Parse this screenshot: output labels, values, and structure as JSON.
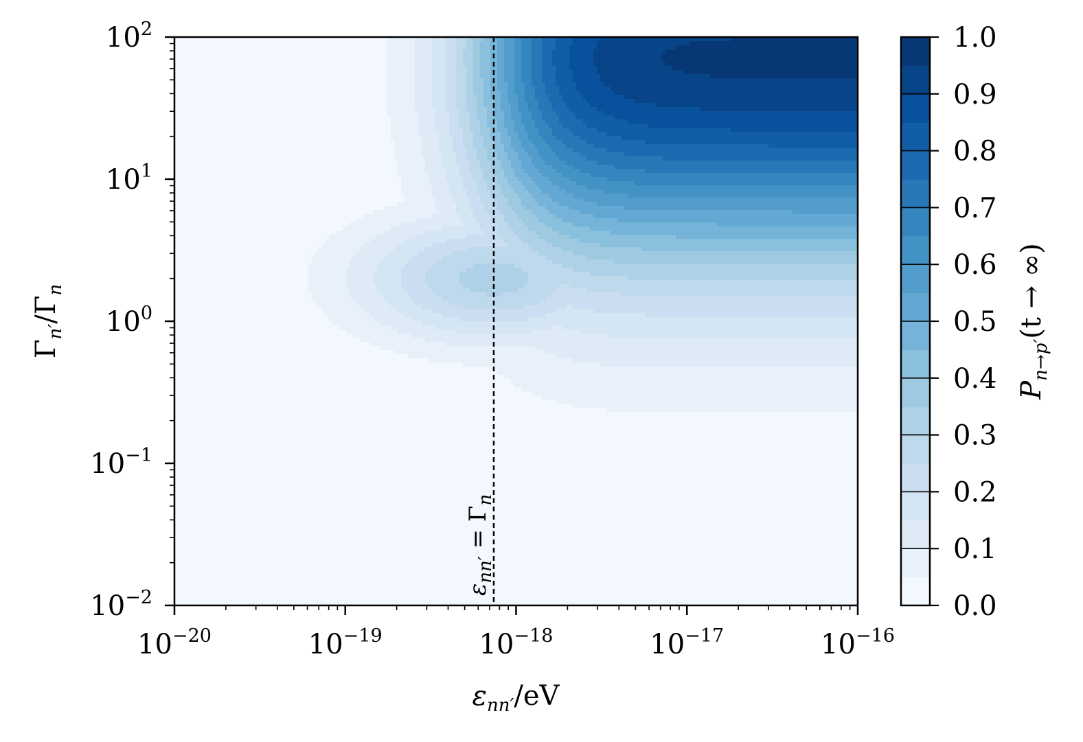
{
  "chart_data": {
    "type": "heatmap",
    "plot": "filled-contour",
    "x_scale": "log",
    "y_scale": "log",
    "xlim": [
      1e-20,
      1e-16
    ],
    "ylim": [
      0.01,
      100
    ],
    "x_ticks": [
      {
        "base": "10",
        "exp": "−20"
      },
      {
        "base": "10",
        "exp": "−19"
      },
      {
        "base": "10",
        "exp": "−18"
      },
      {
        "base": "10",
        "exp": "−17"
      },
      {
        "base": "10",
        "exp": "−16"
      }
    ],
    "y_ticks": [
      {
        "base": "10",
        "exp": "−2"
      },
      {
        "base": "10",
        "exp": "−1"
      },
      {
        "base": "10",
        "exp": "0"
      },
      {
        "base": "10",
        "exp": "1"
      },
      {
        "base": "10",
        "exp": "2"
      }
    ],
    "xlabel": {
      "main": "ε",
      "sub": "nn′",
      "rest": "/eV"
    },
    "ylabel": {
      "g1": "Γ",
      "s1": "n′",
      "mid": "/Γ",
      "s2": "n"
    },
    "colorbar": {
      "label": {
        "p": "P",
        "sub": "n→p′",
        "rest": "(t → ∞)"
      },
      "range": [
        0.0,
        1.0
      ],
      "levels": 20,
      "tick_labels": [
        "0.0",
        "0.1",
        "0.2",
        "0.3",
        "0.4",
        "0.5",
        "0.6",
        "0.7",
        "0.8",
        "0.9",
        "1.0"
      ]
    },
    "vertical_line": {
      "x": 7.4e-19,
      "style": "dashed",
      "label": {
        "main": "ε",
        "sub": "nn′",
        "rest": " = Γ",
        "sub2": "n"
      }
    },
    "colors": [
      "#f7fbff",
      "#deebf7",
      "#c6dbef",
      "#9ecae1",
      "#6baed6",
      "#4292c6",
      "#2171b5",
      "#08519c",
      "#08306b"
    ]
  }
}
